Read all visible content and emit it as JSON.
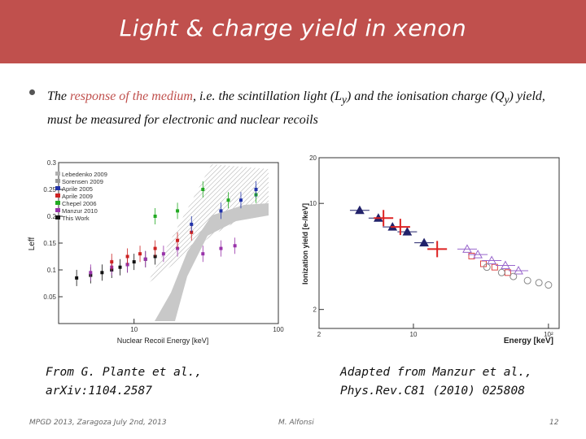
{
  "slide": {
    "title": "Light & charge yield in xenon",
    "bullet": {
      "part1": "The ",
      "highlight": "response of the medium",
      "part2": ", i.e. the scintillation light (L",
      "sub1": "y",
      "part3": ") and the ionisation charge (Q",
      "sub2": "y",
      "part4": ") yield, must be measured for electronic and nuclear recoils"
    },
    "caption_left": [
      "From G. Plante et al.,",
      "arXiv:1104.2587"
    ],
    "caption_right": [
      "Adapted from Manzur et al.,",
      "Phys.Rev.C81 (2010) 025808"
    ],
    "footer_left": "MPGD 2013, Zaragoza July 2nd, 2013",
    "footer_center": "M. Alfonsi",
    "footer_right": "12"
  },
  "chart_data": [
    {
      "type": "scatter",
      "xlabel": "Nuclear Recoil Energy [keV]",
      "ylabel": "Leff",
      "xscale": "log",
      "xlim": [
        3,
        100
      ],
      "ylim": [
        0,
        0.3
      ],
      "xticks": [
        "10",
        "100"
      ],
      "yticks": [
        "0.05",
        "0.1",
        "0.15",
        "0.2",
        "0.25",
        "0.3"
      ],
      "legend_position": "top-left",
      "legend": [
        {
          "name": "Lebedenko 2009",
          "color": "#b0b0b0"
        },
        {
          "name": "Sorensen 2009",
          "color": "#999999"
        },
        {
          "name": "Aprile 2005",
          "color": "#2233aa"
        },
        {
          "name": "Aprile 2009",
          "color": "#cc2222"
        },
        {
          "name": "Chepel 2006",
          "color": "#22aa22"
        },
        {
          "name": "Manzur 2010",
          "color": "#9933aa"
        },
        {
          "name": "This Work",
          "color": "#111111"
        }
      ],
      "series": [
        {
          "name": "This Work",
          "x": [
            4,
            5,
            6,
            7,
            8,
            9,
            10,
            12,
            14
          ],
          "y": [
            0.085,
            0.09,
            0.095,
            0.1,
            0.105,
            0.11,
            0.115,
            0.12,
            0.125
          ]
        },
        {
          "name": "Manzur 2010",
          "x": [
            5,
            7,
            9,
            12,
            16,
            20,
            30,
            40,
            50
          ],
          "y": [
            0.095,
            0.105,
            0.11,
            0.12,
            0.13,
            0.14,
            0.13,
            0.14,
            0.145
          ]
        },
        {
          "name": "Aprile 2009",
          "x": [
            7,
            9,
            11,
            14,
            20,
            25
          ],
          "y": [
            0.115,
            0.125,
            0.13,
            0.14,
            0.155,
            0.17
          ]
        },
        {
          "name": "Chepel 2006",
          "x": [
            14,
            20,
            30,
            45,
            70
          ],
          "y": [
            0.2,
            0.21,
            0.25,
            0.23,
            0.24
          ]
        },
        {
          "name": "Aprile 2005",
          "x": [
            25,
            40,
            55,
            70
          ],
          "y": [
            0.185,
            0.21,
            0.23,
            0.25
          ]
        }
      ]
    },
    {
      "type": "scatter",
      "xlabel": "Energy [keV]",
      "ylabel": "Ionization yield [e-/keV]",
      "xscale": "log",
      "yscale": "log",
      "xlim": [
        2,
        120
      ],
      "ylim": [
        1.5,
        20
      ],
      "xticks": [
        "2",
        "10",
        "10²"
      ],
      "yticks": [
        "2",
        "10",
        "20"
      ],
      "series": [
        {
          "name": "",
          "marker": "triangle",
          "color": "#22226a",
          "x": [
            4,
            5.5,
            7,
            9,
            12
          ],
          "y": [
            9,
            8,
            7,
            6.5,
            5.5
          ]
        },
        {
          "name": "",
          "marker": "cross",
          "color": "#dd2222",
          "x": [
            6,
            8,
            15
          ],
          "y": [
            8,
            7,
            5
          ]
        },
        {
          "name": "",
          "marker": "square",
          "color": "#dd4444",
          "x": [
            27,
            33,
            40,
            50
          ],
          "y": [
            4.5,
            4,
            3.8,
            3.5
          ]
        },
        {
          "name": "",
          "marker": "triangle-open",
          "color": "#9966cc",
          "x": [
            25,
            30,
            38,
            48,
            60
          ],
          "y": [
            5,
            4.6,
            4.2,
            3.9,
            3.6
          ]
        },
        {
          "name": "",
          "marker": "circle-open",
          "color": "#888888",
          "x": [
            35,
            45,
            55,
            70,
            85,
            100
          ],
          "y": [
            3.8,
            3.5,
            3.3,
            3.1,
            3.0,
            2.9
          ]
        }
      ]
    }
  ]
}
